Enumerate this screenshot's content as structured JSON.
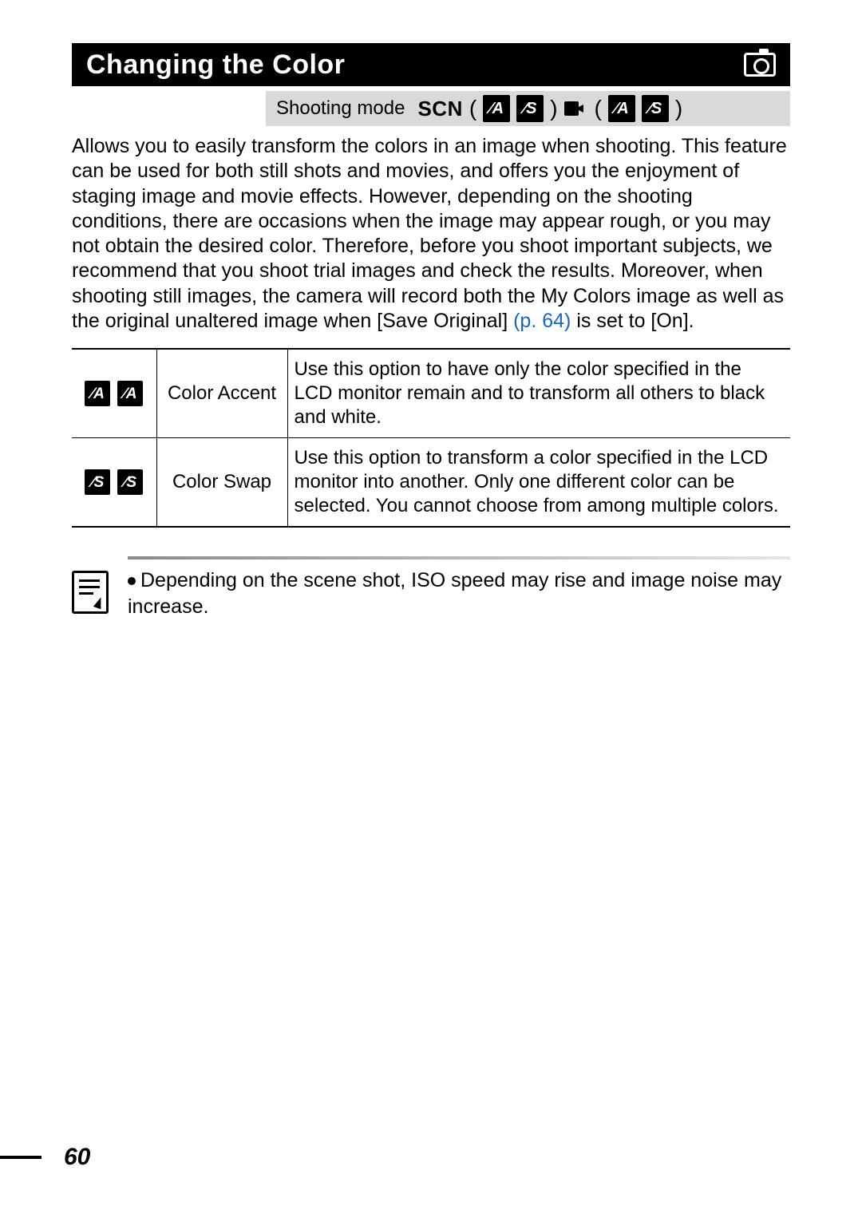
{
  "title": "Changing the Color",
  "shooting_mode": {
    "label": "Shooting mode",
    "scn": "SCN",
    "group1": {
      "open": "(",
      "iconA": "⁄A",
      "iconS": "⁄S",
      "close": ")"
    },
    "group2": {
      "open": "(",
      "iconA": "⁄A",
      "iconS": "⁄S",
      "close": ")"
    }
  },
  "body": {
    "part1": "Allows you to easily transform the colors in an image when shooting. This feature can be used for both still shots and movies, and offers you the enjoyment of staging image and movie effects. However, depending on the shooting conditions, there are occasions when the image may appear rough, or you may not obtain the desired color. Therefore, before you shoot important subjects, we recommend that you shoot trial images and check the results. Moreover, when shooting still images, the camera will record both the My Colors image as well as the original unaltered image when [Save Original] ",
    "page_ref": "(p. 64)",
    "part2": " is set to [On]."
  },
  "table": {
    "rows": [
      {
        "icon1": "⁄A",
        "icon2": "⁄A",
        "name": "Color Accent",
        "desc": "Use this option to have only the color specified in the LCD monitor remain and to transform all others to black and white."
      },
      {
        "icon1": "⁄S",
        "icon2": "⁄S",
        "name": "Color Swap",
        "desc": "Use this option to transform a color specified in the LCD monitor into another. Only one different color can be selected. You cannot choose from among multiple colors."
      }
    ]
  },
  "note": "Depending on the scene shot, ISO speed may rise and image noise may increase.",
  "page_number": "60",
  "colors": {
    "link": "#1966c2",
    "black": "#000000",
    "grey_bar": "#d9d9d9"
  }
}
